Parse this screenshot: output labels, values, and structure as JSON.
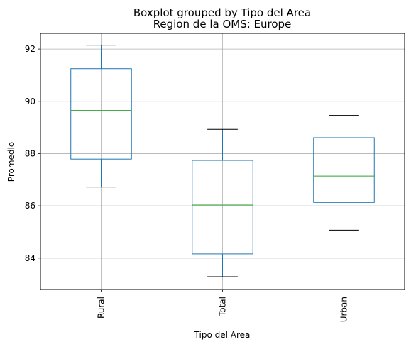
{
  "chart_data": {
    "type": "boxplot",
    "title": "Boxplot grouped by Tipo del Area",
    "subtitle": "Region de la OMS: Europe",
    "xlabel": "Tipo del Area",
    "ylabel": "Promedio",
    "ylim": [
      82.8,
      92.6
    ],
    "yticks": [
      84,
      86,
      88,
      90,
      92
    ],
    "grid": true,
    "categories": [
      "Rural",
      "Total",
      "Urban"
    ],
    "boxes": [
      {
        "category": "Rural",
        "whisker_low": 86.72,
        "q1": 87.79,
        "median": 89.65,
        "q3": 91.25,
        "whisker_high": 92.15
      },
      {
        "category": "Total",
        "whisker_low": 83.29,
        "q1": 84.16,
        "median": 86.03,
        "q3": 87.74,
        "whisker_high": 88.93
      },
      {
        "category": "Urban",
        "whisker_low": 85.07,
        "q1": 86.13,
        "median": 87.14,
        "q3": 88.61,
        "whisker_high": 89.46
      }
    ],
    "colors": {
      "box": "#1f77b4",
      "median": "#2ca02c",
      "whisker": "#1f77b4",
      "cap": "#000000",
      "grid": "#b0b0b0",
      "frame": "#000000"
    }
  }
}
